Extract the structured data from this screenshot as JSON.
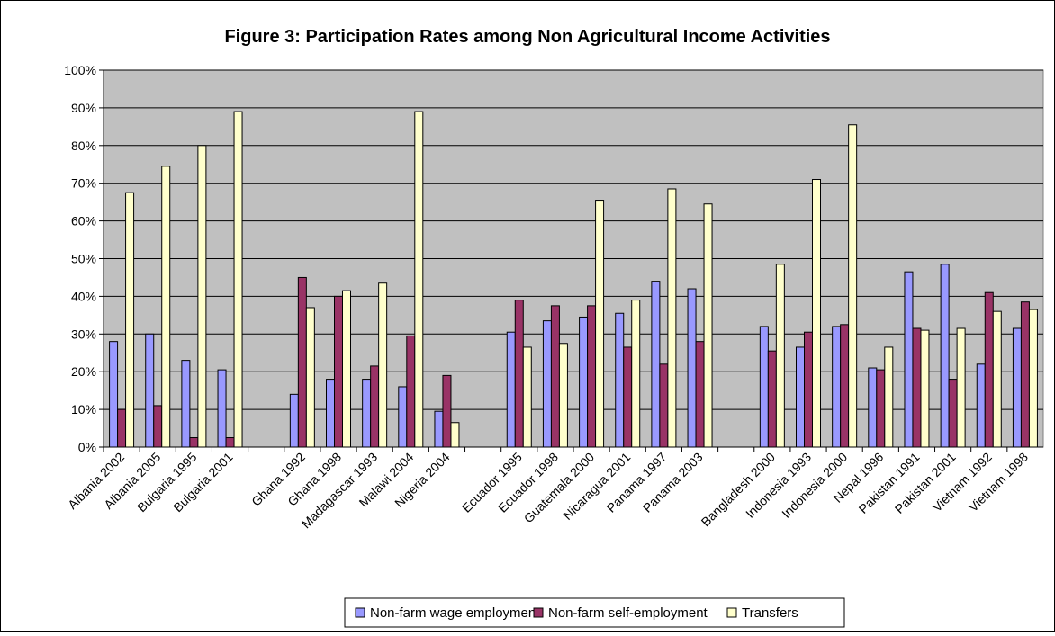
{
  "chart_data": {
    "type": "bar",
    "title": "Figure 3: Participation Rates among Non Agricultural Income Activities",
    "xlabel": "",
    "ylabel": "",
    "ylim": [
      0,
      100
    ],
    "y_ticks": [
      "0%",
      "10%",
      "20%",
      "30%",
      "40%",
      "50%",
      "60%",
      "70%",
      "80%",
      "90%",
      "100%"
    ],
    "grid": true,
    "legend_position": "bottom",
    "categories": [
      "Albania 2002",
      "Albania 2005",
      "Bulgaria 1995",
      "Bulgaria 2001",
      "",
      "Ghana 1992",
      "Ghana 1998",
      "Madagascar 1993",
      "Malawi 2004",
      "Nigeria 2004",
      "",
      "Ecuador 1995",
      "Ecuador 1998",
      "Guatemala 2000",
      "Nicaragua 2001",
      "Panama 1997",
      "Panama 2003",
      "",
      "Bangladesh 2000",
      "Indonesia 1993",
      "Indonesia 2000",
      "Nepal 1996",
      "Pakistan 1991",
      "Pakistan 2001",
      "Vietnam 1992",
      "Vietnam 1998"
    ],
    "series": [
      {
        "name": "Non-farm wage employment",
        "color": "#9999ff",
        "values": [
          28,
          30,
          23,
          20.5,
          null,
          14,
          18,
          18,
          16,
          9.5,
          null,
          30.5,
          33.5,
          34.5,
          35.5,
          44,
          42,
          null,
          32,
          26.5,
          32,
          21,
          46.5,
          48.5,
          22,
          31.5
        ]
      },
      {
        "name": "Non-farm self-employment",
        "color": "#993366",
        "values": [
          10,
          11,
          2.5,
          2.5,
          null,
          45,
          40,
          21.5,
          29.5,
          19,
          null,
          39,
          37.5,
          37.5,
          26.5,
          22,
          28,
          null,
          25.5,
          30.5,
          32.5,
          20.5,
          31.5,
          18,
          41,
          38.5
        ]
      },
      {
        "name": "Transfers",
        "color": "#ffffcc",
        "values": [
          67.5,
          74.5,
          80,
          89,
          null,
          37,
          41.5,
          43.5,
          89,
          6.5,
          null,
          26.5,
          27.5,
          65.5,
          39,
          68.5,
          64.5,
          null,
          48.5,
          71,
          85.5,
          26.5,
          31,
          31.5,
          36,
          36.5
        ]
      }
    ]
  }
}
